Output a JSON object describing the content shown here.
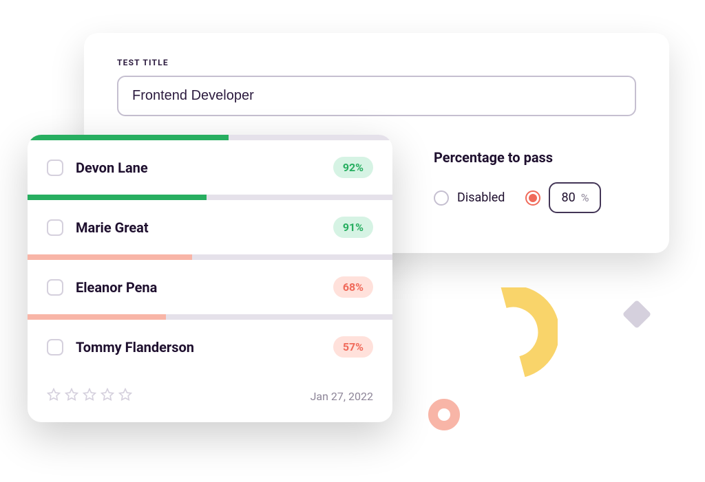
{
  "back_card": {
    "title_label": "TEST TITLE",
    "title_value": "Frontend Developer",
    "pass_heading": "Percentage to pass",
    "disabled_label": "Disabled",
    "percent_value": "80",
    "percent_symbol": "%",
    "radio_selected": "value"
  },
  "candidates": [
    {
      "name": "Devon Lane",
      "score": "92%",
      "progress": 55,
      "color": "#27ae60",
      "pill": "green"
    },
    {
      "name": "Marie Great",
      "score": "91%",
      "progress": 49,
      "color": "#27ae60",
      "pill": "green"
    },
    {
      "name": "Eleanor Pena",
      "score": "68%",
      "progress": 45,
      "color": "#f8b5a7",
      "pill": "red"
    },
    {
      "name": "Tommy Flanderson",
      "score": "57%",
      "progress": 38,
      "color": "#f8b5a7",
      "pill": "red"
    }
  ],
  "footer": {
    "stars_total": 5,
    "date": "Jan 27, 2022"
  },
  "colors": {
    "arc": "#f9d46a",
    "diamond": "#d5d0dd",
    "donut": "#f8b5a7"
  }
}
